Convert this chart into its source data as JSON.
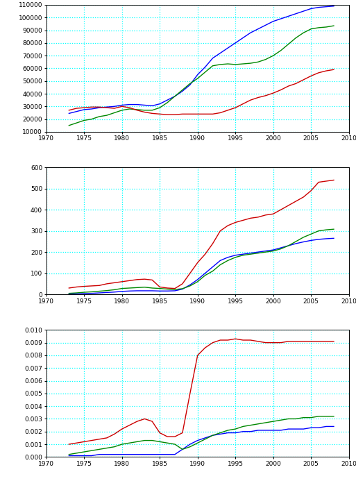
{
  "years": [
    1973,
    1974,
    1975,
    1976,
    1977,
    1978,
    1979,
    1980,
    1981,
    1982,
    1983,
    1984,
    1985,
    1986,
    1987,
    1988,
    1989,
    1990,
    1991,
    1992,
    1993,
    1994,
    1995,
    1996,
    1997,
    1998,
    1999,
    2000,
    2001,
    2002,
    2003,
    2004,
    2005,
    2006,
    2007,
    2008
  ],
  "plot1": {
    "blue": [
      24500,
      26000,
      27500,
      28000,
      29000,
      29500,
      30000,
      31000,
      31500,
      31500,
      31000,
      30500,
      32000,
      35000,
      38000,
      42000,
      47000,
      55000,
      61000,
      68000,
      72000,
      76000,
      80000,
      84000,
      88000,
      91000,
      94000,
      97000,
      99000,
      101000,
      103000,
      105000,
      107000,
      108000,
      108500,
      109000
    ],
    "green": [
      15000,
      17000,
      19000,
      20000,
      22000,
      23000,
      25000,
      27000,
      28000,
      27500,
      27000,
      27000,
      29000,
      33000,
      38000,
      43000,
      48000,
      52000,
      57000,
      62000,
      63000,
      63500,
      63000,
      63500,
      64000,
      65000,
      67000,
      70000,
      74000,
      79000,
      84000,
      88000,
      91000,
      92000,
      92500,
      93500
    ],
    "red": [
      27000,
      28500,
      29000,
      29500,
      29500,
      29000,
      28500,
      30000,
      29000,
      27000,
      25500,
      24500,
      24000,
      23500,
      23500,
      24000,
      24000,
      24000,
      24000,
      24000,
      25000,
      27000,
      29000,
      32000,
      35000,
      37000,
      38500,
      40500,
      43000,
      46000,
      48000,
      51000,
      54000,
      56500,
      58000,
      59000
    ],
    "ylim": [
      10000,
      110000
    ],
    "yticks": [
      10000,
      20000,
      30000,
      40000,
      50000,
      60000,
      70000,
      80000,
      90000,
      100000,
      110000
    ]
  },
  "plot2": {
    "red": [
      30,
      35,
      38,
      40,
      42,
      50,
      55,
      60,
      65,
      70,
      72,
      68,
      35,
      30,
      28,
      50,
      100,
      150,
      190,
      240,
      300,
      325,
      340,
      350,
      360,
      365,
      375,
      380,
      400,
      420,
      440,
      460,
      490,
      530,
      535,
      540
    ],
    "green": [
      5,
      7,
      10,
      12,
      15,
      18,
      22,
      28,
      30,
      32,
      34,
      30,
      28,
      25,
      23,
      27,
      40,
      60,
      90,
      110,
      140,
      160,
      175,
      185,
      190,
      195,
      200,
      205,
      215,
      230,
      250,
      270,
      285,
      300,
      305,
      308
    ],
    "blue": [
      2,
      3,
      4,
      5,
      7,
      9,
      11,
      14,
      16,
      17,
      17,
      17,
      16,
      16,
      17,
      25,
      45,
      70,
      100,
      130,
      160,
      175,
      185,
      190,
      195,
      200,
      205,
      210,
      220,
      230,
      240,
      248,
      255,
      260,
      263,
      265
    ],
    "ylim": [
      0,
      600
    ],
    "yticks": [
      0,
      100,
      200,
      300,
      400,
      500,
      600
    ]
  },
  "plot3": {
    "red": [
      0.001,
      0.0011,
      0.0012,
      0.0013,
      0.0014,
      0.0015,
      0.0018,
      0.0022,
      0.0025,
      0.0028,
      0.003,
      0.0028,
      0.0019,
      0.0016,
      0.0016,
      0.0019,
      0.005,
      0.008,
      0.0086,
      0.009,
      0.0092,
      0.0092,
      0.0093,
      0.0092,
      0.0092,
      0.0091,
      0.009,
      0.009,
      0.009,
      0.0091,
      0.0091,
      0.0091,
      0.0091,
      0.0091,
      0.0091,
      0.0091
    ],
    "green": [
      0.0002,
      0.0003,
      0.0004,
      0.0005,
      0.0006,
      0.0007,
      0.0008,
      0.001,
      0.0011,
      0.0012,
      0.0013,
      0.0013,
      0.0012,
      0.0011,
      0.001,
      0.0006,
      0.0008,
      0.0011,
      0.0014,
      0.0017,
      0.0019,
      0.0021,
      0.0022,
      0.0024,
      0.0025,
      0.0026,
      0.0027,
      0.0028,
      0.0029,
      0.003,
      0.003,
      0.0031,
      0.0031,
      0.0032,
      0.0032,
      0.0032
    ],
    "blue": [
      0.0001,
      0.0001,
      0.0001,
      0.0001,
      0.0002,
      0.0002,
      0.0002,
      0.0002,
      0.0002,
      0.0002,
      0.0002,
      0.0002,
      0.0002,
      0.0002,
      0.0002,
      0.0006,
      0.001,
      0.0013,
      0.0015,
      0.0017,
      0.0018,
      0.0019,
      0.0019,
      0.002,
      0.002,
      0.0021,
      0.0021,
      0.0021,
      0.0021,
      0.0022,
      0.0022,
      0.0022,
      0.0023,
      0.0023,
      0.0024,
      0.0024
    ],
    "ylim": [
      0.0,
      0.01
    ],
    "yticks": [
      0.0,
      0.001,
      0.002,
      0.003,
      0.004,
      0.005,
      0.006,
      0.007,
      0.008,
      0.009,
      0.01
    ]
  },
  "colors": {
    "blue": "#0000FF",
    "green": "#008800",
    "red": "#CC0000"
  },
  "grid_color": "#00FFFF",
  "xlim": [
    1970,
    2010
  ],
  "xticks": [
    1970,
    1975,
    1980,
    1985,
    1990,
    1995,
    2000,
    2005,
    2010
  ],
  "bg_color": "#FFFFFF",
  "line_width": 1.0
}
